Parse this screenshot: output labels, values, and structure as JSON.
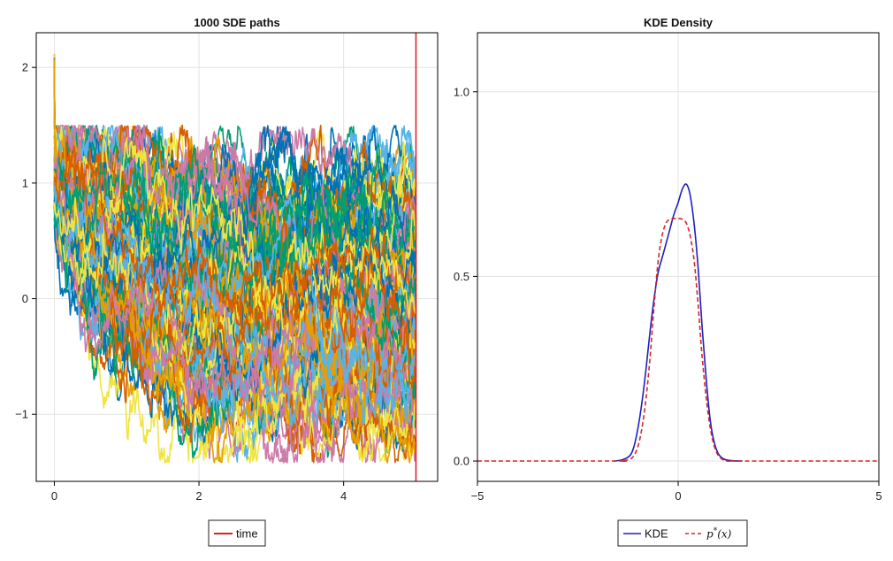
{
  "chart_data": [
    {
      "type": "line",
      "title": "1000 SDE paths",
      "xlabel": "",
      "ylabel": "",
      "xlim": [
        -0.25,
        5.3
      ],
      "ylim": [
        -1.58,
        2.3
      ],
      "xticks": [
        0,
        2,
        4
      ],
      "xtick_labels": [
        "0",
        "2",
        "4"
      ],
      "yticks": [
        -1,
        0,
        1,
        2
      ],
      "ytick_labels": [
        "−1",
        "0",
        "1",
        "2"
      ],
      "grid": true,
      "path_count": 1000,
      "path_start": 1.0,
      "path_start_spread": [
        0.82,
        2.12
      ],
      "path_end_range": [
        -1.4,
        1.4
      ],
      "path_mean_end": 0.0,
      "path_colors": [
        "#0072B2",
        "#E69F00",
        "#009E73",
        "#CC79A7",
        "#56B4E9",
        "#F0E442",
        "#D55E00"
      ],
      "vline": {
        "name": "time",
        "x": 5.0,
        "color": "#D62728"
      },
      "legend": {
        "position": "bottom-center",
        "entries": [
          {
            "label": "time",
            "color": "#D62728",
            "style": "solid"
          }
        ]
      }
    },
    {
      "type": "line",
      "title": "KDE Density",
      "xlabel": "",
      "ylabel": "",
      "xlim": [
        -5,
        5
      ],
      "ylim": [
        -0.055,
        1.16
      ],
      "xticks": [
        -5,
        0,
        5
      ],
      "xtick_labels": [
        "−5",
        "0",
        "5"
      ],
      "yticks": [
        0.0,
        0.5,
        1.0
      ],
      "ytick_labels": [
        "0.0",
        "0.5",
        "1.0"
      ],
      "grid": true,
      "series": [
        {
          "name": "KDE",
          "color": "#1F1FBF",
          "style": "solid",
          "x": [
            -1.6,
            -1.4,
            -1.2,
            -1.1,
            -1.0,
            -0.9,
            -0.8,
            -0.7,
            -0.6,
            -0.5,
            -0.4,
            -0.3,
            -0.2,
            -0.1,
            0.0,
            0.1,
            0.2,
            0.3,
            0.4,
            0.5,
            0.6,
            0.7,
            0.8,
            0.9,
            1.0,
            1.1,
            1.2,
            1.4,
            1.6
          ],
          "y": [
            0.0,
            0.003,
            0.015,
            0.04,
            0.09,
            0.16,
            0.25,
            0.35,
            0.44,
            0.51,
            0.55,
            0.59,
            0.63,
            0.67,
            0.7,
            0.735,
            0.75,
            0.72,
            0.64,
            0.52,
            0.36,
            0.22,
            0.11,
            0.05,
            0.02,
            0.008,
            0.003,
            0.0005,
            0.0
          ]
        },
        {
          "name": "p^*(x)",
          "color": "#D62728",
          "style": "dashed",
          "x": [
            -5,
            -1.6,
            -1.4,
            -1.2,
            -1.1,
            -1.0,
            -0.9,
            -0.8,
            -0.7,
            -0.6,
            -0.5,
            -0.4,
            -0.3,
            -0.2,
            -0.1,
            0.0,
            0.1,
            0.2,
            0.3,
            0.4,
            0.5,
            0.6,
            0.7,
            0.8,
            0.9,
            1.0,
            1.1,
            1.2,
            1.4,
            1.6,
            5
          ],
          "y": [
            0.0,
            0.0,
            0.0,
            0.005,
            0.015,
            0.04,
            0.09,
            0.17,
            0.28,
            0.42,
            0.54,
            0.61,
            0.645,
            0.655,
            0.657,
            0.657,
            0.655,
            0.645,
            0.61,
            0.54,
            0.42,
            0.28,
            0.17,
            0.09,
            0.04,
            0.015,
            0.005,
            0.0,
            0.0,
            0.0,
            0.0
          ]
        }
      ],
      "legend": {
        "position": "bottom-center"
      }
    }
  ],
  "legend1": {
    "time": "time"
  },
  "legend2": {
    "kde": "KDE",
    "pstar_base": "p",
    "pstar_sup": "*",
    "pstar_arg": "(x)"
  }
}
